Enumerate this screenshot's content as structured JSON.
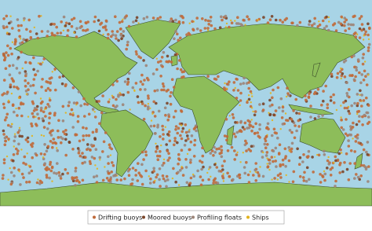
{
  "legend": {
    "items": [
      {
        "label": "Drifting buoys",
        "color": "#c06a3a"
      },
      {
        "label": "Moored buoys",
        "color": "#7a4428"
      },
      {
        "label": "Profiling floats",
        "color": "#9c8478"
      },
      {
        "label": "Ships",
        "color": "#e2b21c"
      }
    ]
  }
}
